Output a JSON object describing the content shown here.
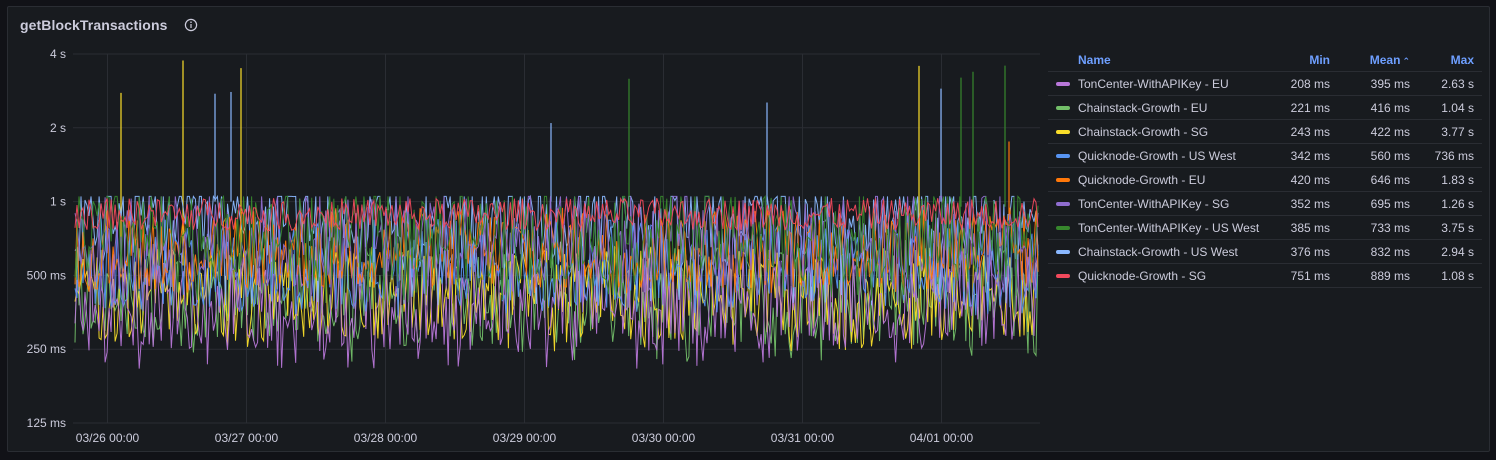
{
  "panel": {
    "title": "getBlockTransactions"
  },
  "chart_data": {
    "type": "line",
    "title": "getBlockTransactions",
    "y_scale": "log2",
    "ylim": [
      0.125,
      4
    ],
    "y_ticks": [
      {
        "value": 4,
        "label": "4 s"
      },
      {
        "value": 2,
        "label": "2 s"
      },
      {
        "value": 1,
        "label": "1 s"
      },
      {
        "value": 0.5,
        "label": "500 ms"
      },
      {
        "value": 0.25,
        "label": "250 ms"
      },
      {
        "value": 0.125,
        "label": "125 ms"
      }
    ],
    "x_ticks": [
      "03/26 00:00",
      "03/27 00:00",
      "03/28 00:00",
      "03/29 00:00",
      "03/30 00:00",
      "03/31 00:00",
      "04/01 00:00"
    ],
    "grid": true,
    "legend_placement": "right",
    "series": [
      {
        "name": "TonCenter-WithAPIKey - EU",
        "color": "#b877d9",
        "min": "208 ms",
        "mean": "395 ms",
        "max": "2.63 s",
        "min_s": 0.208,
        "mean_s": 0.395,
        "max_s": 2.63
      },
      {
        "name": "Chainstack-Growth - EU",
        "color": "#73bf69",
        "min": "221 ms",
        "mean": "416 ms",
        "max": "1.04 s",
        "min_s": 0.221,
        "mean_s": 0.416,
        "max_s": 1.04
      },
      {
        "name": "Chainstack-Growth - SG",
        "color": "#fade2a",
        "min": "243 ms",
        "mean": "422 ms",
        "max": "3.77 s",
        "min_s": 0.243,
        "mean_s": 0.422,
        "max_s": 3.77
      },
      {
        "name": "Quicknode-Growth - US West",
        "color": "#5794f2",
        "min": "342 ms",
        "mean": "560 ms",
        "max": "736 ms",
        "min_s": 0.342,
        "mean_s": 0.56,
        "max_s": 0.736
      },
      {
        "name": "Quicknode-Growth - EU",
        "color": "#ff780a",
        "min": "420 ms",
        "mean": "646 ms",
        "max": "1.83 s",
        "min_s": 0.42,
        "mean_s": 0.646,
        "max_s": 1.83
      },
      {
        "name": "TonCenter-WithAPIKey - SG",
        "color": "#8f6dcf",
        "min": "352 ms",
        "mean": "695 ms",
        "max": "1.26 s",
        "min_s": 0.352,
        "mean_s": 0.695,
        "max_s": 1.26
      },
      {
        "name": "TonCenter-WithAPIKey - US West",
        "color": "#37872d",
        "min": "385 ms",
        "mean": "733 ms",
        "max": "3.75 s",
        "min_s": 0.385,
        "mean_s": 0.733,
        "max_s": 3.75
      },
      {
        "name": "Chainstack-Growth - US West",
        "color": "#8ab8ff",
        "min": "376 ms",
        "mean": "832 ms",
        "max": "2.94 s",
        "min_s": 0.376,
        "mean_s": 0.832,
        "max_s": 2.94
      },
      {
        "name": "Quicknode-Growth - SG",
        "color": "#f2495c",
        "min": "751 ms",
        "mean": "889 ms",
        "max": "1.08 s",
        "min_s": 0.751,
        "mean_s": 0.889,
        "max_s": 1.08
      }
    ]
  },
  "legend": {
    "headers": {
      "name": "Name",
      "min": "Min",
      "mean": "Mean",
      "max": "Max"
    },
    "sorted_by": "Mean",
    "sort_direction": "ascending"
  },
  "colors": {
    "panel_bg": "#181b1f",
    "page_bg": "#111217",
    "grid": "#2a2d33",
    "text": "#ccccdc",
    "header": "#6e9fff"
  }
}
